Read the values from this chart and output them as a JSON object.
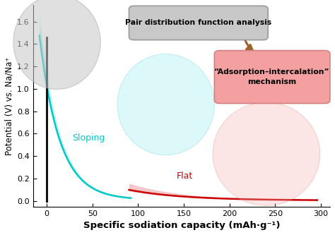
{
  "xlabel": "Specific sodiation capacity (mAh·g⁻¹)",
  "ylabel": "Potential (V) vs. Na/Na⁺",
  "xlim": [
    -15,
    310
  ],
  "ylim": [
    -0.05,
    1.75
  ],
  "xticks": [
    0,
    50,
    100,
    150,
    200,
    250,
    300
  ],
  "yticks": [
    0.0,
    0.2,
    0.4,
    0.6,
    0.8,
    1.0,
    1.2,
    1.4,
    1.6
  ],
  "sloping_color": "#00C8C8",
  "flat_color": "#CC0000",
  "black_line_color": "#111111",
  "label_sloping": "Sloping",
  "label_flat": "Flat",
  "pdf_box_text": "Pair distribution function analysis",
  "adsorption_box_text": "“Adsorption–intercalation”\nmechanism",
  "pdf_box_facecolor": "#C8C8C8",
  "pdf_box_edgecolor": "#999999",
  "adsorption_box_facecolor": "#F4A0A0",
  "adsorption_box_edgecolor": "#D08080",
  "arrow_color": "#A0622A",
  "gray_circle_color": "#C8C8C8",
  "cyan_circle_color": "#60E0E0",
  "pink_circle_color": "#F4AAAA",
  "figsize": [
    4.74,
    3.33
  ],
  "dpi": 100
}
